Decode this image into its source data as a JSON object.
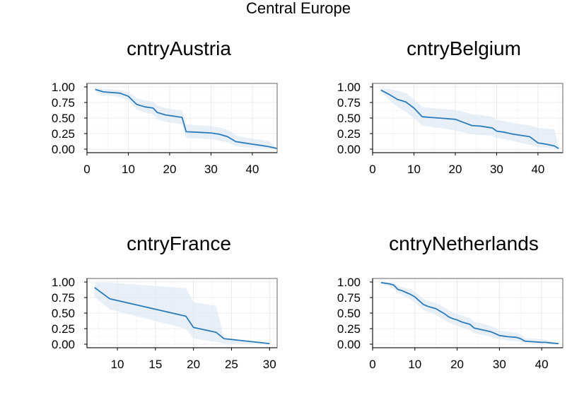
{
  "title": "Central Europe",
  "colors": {
    "line": "#2b7bba",
    "band": "#dbe7f3"
  },
  "chart_data": [
    {
      "type": "line",
      "title": "cntryAustria",
      "xlim": [
        0,
        46
      ],
      "ylim": [
        0,
        1
      ],
      "xticks": [
        0,
        10,
        20,
        30,
        40
      ],
      "yticks": [
        0.0,
        0.25,
        0.5,
        0.75,
        1.0
      ],
      "ytick_labels": [
        "0.00",
        "0.25",
        "0.50",
        "0.75",
        "1.00"
      ],
      "x": [
        2,
        4,
        8,
        10,
        12,
        14,
        16,
        17,
        19,
        21,
        23,
        24,
        27,
        30,
        32,
        34,
        35,
        36,
        38,
        40,
        42,
        44,
        46
      ],
      "y": [
        0.96,
        0.92,
        0.9,
        0.85,
        0.72,
        0.68,
        0.66,
        0.59,
        0.55,
        0.53,
        0.51,
        0.28,
        0.27,
        0.26,
        0.24,
        0.2,
        0.16,
        0.12,
        0.1,
        0.08,
        0.06,
        0.04,
        0.01
      ],
      "lower": [
        0.92,
        0.87,
        0.84,
        0.78,
        0.64,
        0.59,
        0.56,
        0.48,
        0.44,
        0.42,
        0.4,
        0.18,
        0.17,
        0.16,
        0.14,
        0.11,
        0.08,
        0.05,
        0.03,
        0.02,
        0.01,
        0.01,
        0.01
      ],
      "upper": [
        0.99,
        0.97,
        0.95,
        0.92,
        0.82,
        0.78,
        0.76,
        0.7,
        0.66,
        0.64,
        0.62,
        0.4,
        0.38,
        0.37,
        0.35,
        0.31,
        0.27,
        0.22,
        0.19,
        0.17,
        0.15,
        0.13,
        0.01
      ]
    },
    {
      "type": "line",
      "title": "cntryBelgium",
      "xlim": [
        0,
        46
      ],
      "ylim": [
        0,
        1
      ],
      "xticks": [
        0,
        10,
        20,
        30,
        40
      ],
      "yticks": [
        0.0,
        0.25,
        0.5,
        0.75,
        1.0
      ],
      "ytick_labels": [
        "0.00",
        "0.25",
        "0.50",
        "0.75",
        "1.00"
      ],
      "x": [
        2,
        4,
        6,
        8,
        10,
        12,
        14,
        16,
        18,
        20,
        22,
        24,
        26,
        28,
        29,
        30,
        32,
        34,
        36,
        38,
        40,
        42,
        44,
        45
      ],
      "y": [
        0.95,
        0.88,
        0.8,
        0.76,
        0.66,
        0.52,
        0.51,
        0.5,
        0.49,
        0.48,
        0.43,
        0.38,
        0.37,
        0.35,
        0.34,
        0.29,
        0.27,
        0.24,
        0.22,
        0.2,
        0.1,
        0.08,
        0.05,
        0.01
      ],
      "lower": [
        0.92,
        0.8,
        0.68,
        0.6,
        0.5,
        0.38,
        0.36,
        0.34,
        0.32,
        0.3,
        0.27,
        0.24,
        0.23,
        0.22,
        0.21,
        0.18,
        0.16,
        0.13,
        0.1,
        0.07,
        0.03,
        0.02,
        0.01,
        0.01
      ],
      "upper": [
        0.98,
        0.97,
        0.94,
        0.9,
        0.8,
        0.68,
        0.66,
        0.65,
        0.64,
        0.63,
        0.6,
        0.56,
        0.55,
        0.53,
        0.52,
        0.47,
        0.45,
        0.42,
        0.4,
        0.38,
        0.34,
        0.33,
        0.32,
        0.01
      ]
    },
    {
      "type": "line",
      "title": "cntryFrance",
      "xlim": [
        6,
        31
      ],
      "ylim": [
        0,
        1
      ],
      "xticks": [
        10,
        15,
        20,
        25,
        30
      ],
      "yticks": [
        0.0,
        0.25,
        0.5,
        0.75,
        1.0
      ],
      "ytick_labels": [
        "0.00",
        "0.25",
        "0.50",
        "0.75",
        "1.00"
      ],
      "x": [
        7,
        9,
        19,
        20,
        23,
        24,
        30
      ],
      "y": [
        0.91,
        0.73,
        0.45,
        0.27,
        0.19,
        0.09,
        0.01
      ],
      "lower": [
        0.76,
        0.56,
        0.25,
        0.09,
        0.04,
        0.01,
        0.01
      ],
      "upper": [
        0.99,
        0.99,
        0.9,
        0.68,
        0.61,
        0.09,
        0.01
      ]
    },
    {
      "type": "line",
      "title": "cntryNetherlands",
      "xlim": [
        0,
        45
      ],
      "ylim": [
        0,
        1
      ],
      "xticks": [
        0,
        10,
        20,
        30,
        40
      ],
      "yticks": [
        0.0,
        0.25,
        0.5,
        0.75,
        1.0
      ],
      "ytick_labels": [
        "0.00",
        "0.25",
        "0.50",
        "0.75",
        "1.00"
      ],
      "x": [
        2,
        4,
        5,
        6,
        7,
        8,
        9,
        10,
        11,
        12,
        13,
        14,
        15,
        16,
        17,
        18,
        19,
        20,
        21,
        22,
        23,
        24,
        26,
        28,
        29,
        30,
        32,
        34,
        35,
        36,
        38,
        40,
        41,
        42,
        44
      ],
      "y": [
        0.99,
        0.97,
        0.95,
        0.88,
        0.86,
        0.83,
        0.8,
        0.76,
        0.7,
        0.64,
        0.61,
        0.59,
        0.57,
        0.53,
        0.49,
        0.44,
        0.41,
        0.39,
        0.36,
        0.34,
        0.32,
        0.26,
        0.23,
        0.2,
        0.17,
        0.14,
        0.12,
        0.11,
        0.09,
        0.05,
        0.04,
        0.03,
        0.03,
        0.02,
        0.01
      ],
      "lower": [
        0.97,
        0.93,
        0.9,
        0.82,
        0.79,
        0.75,
        0.72,
        0.67,
        0.61,
        0.55,
        0.52,
        0.5,
        0.47,
        0.43,
        0.39,
        0.35,
        0.32,
        0.3,
        0.27,
        0.25,
        0.23,
        0.18,
        0.15,
        0.12,
        0.1,
        0.08,
        0.06,
        0.05,
        0.04,
        0.02,
        0.01,
        0.01,
        0.01,
        0.01,
        0.01
      ],
      "upper": [
        1.0,
        0.99,
        0.99,
        0.94,
        0.92,
        0.9,
        0.88,
        0.84,
        0.79,
        0.73,
        0.7,
        0.68,
        0.66,
        0.63,
        0.59,
        0.54,
        0.51,
        0.49,
        0.46,
        0.44,
        0.42,
        0.36,
        0.33,
        0.29,
        0.26,
        0.22,
        0.2,
        0.18,
        0.16,
        0.1,
        0.09,
        0.08,
        0.07,
        0.05,
        0.01
      ]
    }
  ]
}
